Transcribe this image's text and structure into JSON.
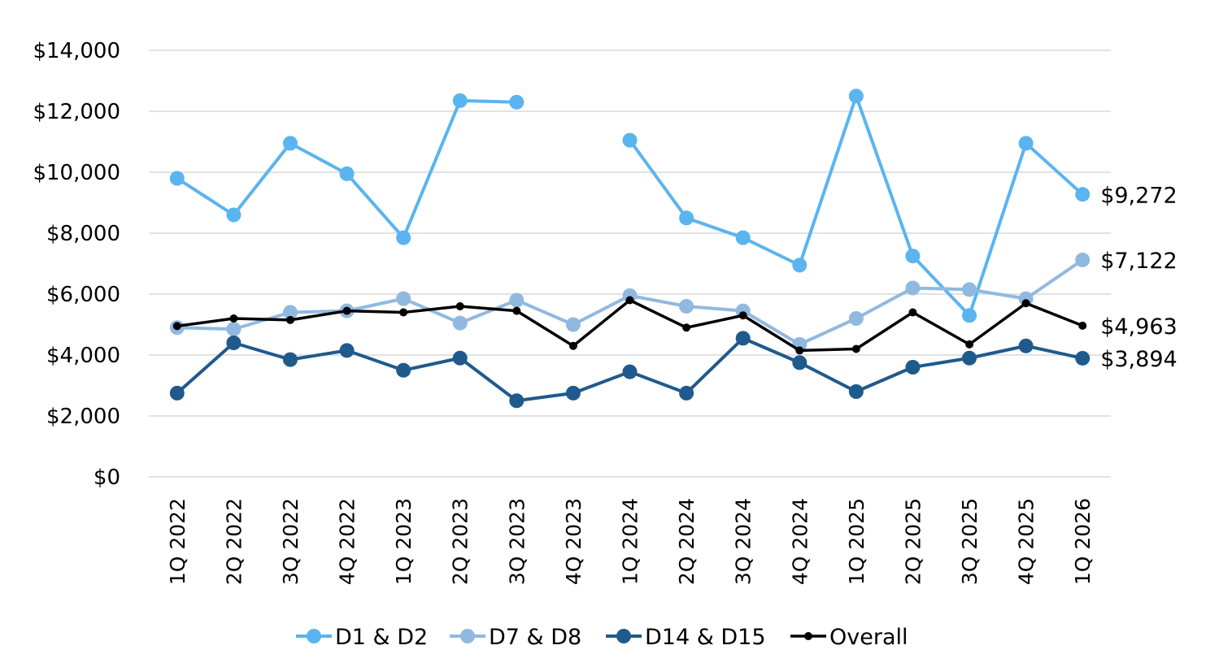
{
  "chart_data": {
    "type": "line",
    "title": "",
    "xlabel": "",
    "ylabel": "",
    "categories": [
      "1Q 2022",
      "2Q 2022",
      "3Q 2022",
      "4Q 2022",
      "1Q 2023",
      "2Q 2023",
      "3Q 2023",
      "4Q 2023",
      "1Q 2024",
      "2Q 2024",
      "3Q 2024",
      "4Q 2024",
      "1Q 2025",
      "2Q 2025",
      "3Q 2025",
      "4Q 2025",
      "1Q 2026"
    ],
    "ylim": [
      0,
      14000
    ],
    "y_ticks": [
      0,
      2000,
      4000,
      6000,
      8000,
      10000,
      12000,
      14000
    ],
    "y_tick_labels": [
      "$0",
      "$2,000",
      "$4,000",
      "$6,000",
      "$8,000",
      "$10,000",
      "$12,000",
      "$14,000"
    ],
    "grid": "horizontal",
    "legend_position": "bottom",
    "series": [
      {
        "name": "D1 & D2",
        "color": "#5ab4ef",
        "marker": "large",
        "values": [
          9800,
          8600,
          10950,
          9950,
          7850,
          12350,
          12300,
          null,
          11050,
          8500,
          7850,
          6950,
          12500,
          7250,
          5300,
          10950,
          9272
        ],
        "end_label": "$9,272"
      },
      {
        "name": "D7 & D8",
        "color": "#91b9e0",
        "marker": "large",
        "values": [
          4900,
          4850,
          5400,
          5450,
          5850,
          5050,
          5800,
          5000,
          5950,
          5600,
          5450,
          4350,
          5200,
          6200,
          6150,
          5850,
          7122
        ],
        "end_label": "$7,122"
      },
      {
        "name": "D14 & D15",
        "color": "#1f5a8c",
        "marker": "large",
        "values": [
          2750,
          4400,
          3850,
          4150,
          3500,
          3900,
          2500,
          2750,
          3450,
          2750,
          4550,
          3750,
          2800,
          3600,
          3900,
          4300,
          3894
        ],
        "end_label": "$3,894"
      },
      {
        "name": "Overall",
        "color": "#000000",
        "marker": "small",
        "values": [
          4950,
          5200,
          5150,
          5450,
          5400,
          5600,
          5450,
          4300,
          5800,
          4900,
          5300,
          4150,
          4200,
          5400,
          4350,
          5700,
          4963
        ],
        "end_label": "$4,963"
      }
    ]
  }
}
